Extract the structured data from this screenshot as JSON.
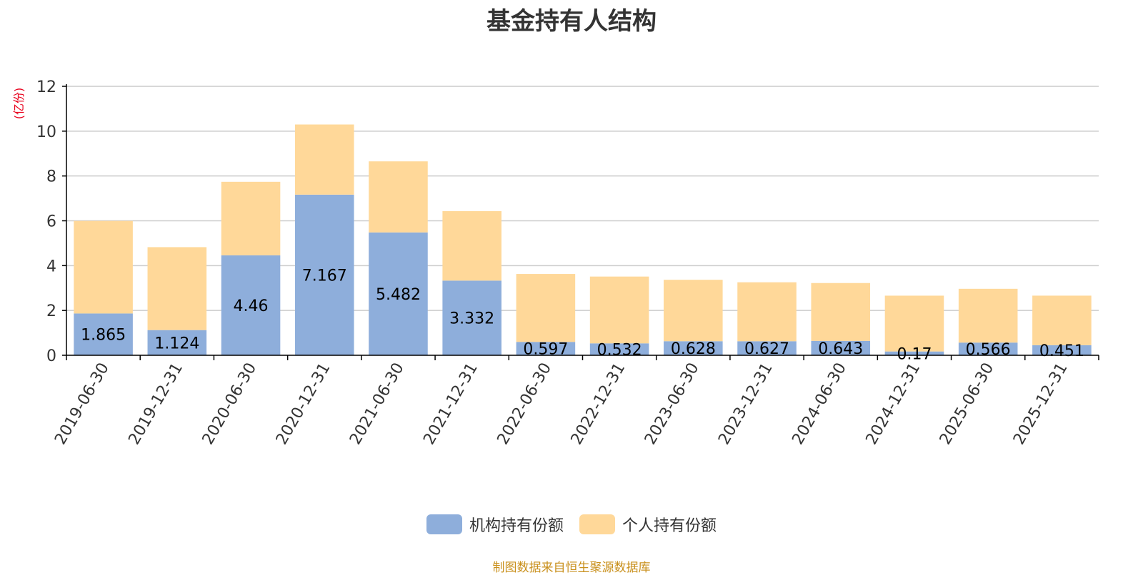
{
  "colors": {
    "institutional": "#8eaedb",
    "individual": "#ffd899",
    "unit": "#e8001c",
    "source": "#c9901c",
    "grid": "#cccccc",
    "axis": "#000000"
  },
  "chart_data": {
    "type": "bar",
    "stacked": true,
    "title": "基金持有人结构",
    "ylabel": "(亿份)",
    "ylim": [
      0,
      12
    ],
    "yticks": [
      "0",
      "2",
      "4",
      "6",
      "8",
      "10",
      "12"
    ],
    "grid": true,
    "legend_position": "bottom-center",
    "categories": [
      "2019-06-30",
      "2019-12-31",
      "2020-06-30",
      "2020-12-31",
      "2021-06-30",
      "2021-12-31",
      "2022-06-30",
      "2022-12-31",
      "2023-06-30",
      "2023-12-31",
      "2024-06-30",
      "2024-12-31",
      "2025-06-30",
      "2025-12-31"
    ],
    "series": [
      {
        "name": "机构持有份额",
        "values": [
          1.865,
          1.124,
          4.46,
          7.167,
          5.482,
          3.332,
          0.597,
          0.532,
          0.628,
          0.627,
          0.643,
          0.17,
          0.566,
          0.451
        ],
        "labels": [
          "1.865",
          "1.124",
          "4.46",
          "7.167",
          "5.482",
          "3.332",
          "0.597",
          "0.532",
          "0.628",
          "0.627",
          "0.643",
          "0.17",
          "0.566",
          "0.451"
        ]
      },
      {
        "name": "个人持有份额",
        "values": [
          4.13,
          3.7,
          3.28,
          3.13,
          3.17,
          3.1,
          3.03,
          2.98,
          2.74,
          2.63,
          2.58,
          2.49,
          2.4,
          2.21
        ]
      }
    ]
  },
  "footer": {
    "source": "制图数据来自恒生聚源数据库"
  }
}
